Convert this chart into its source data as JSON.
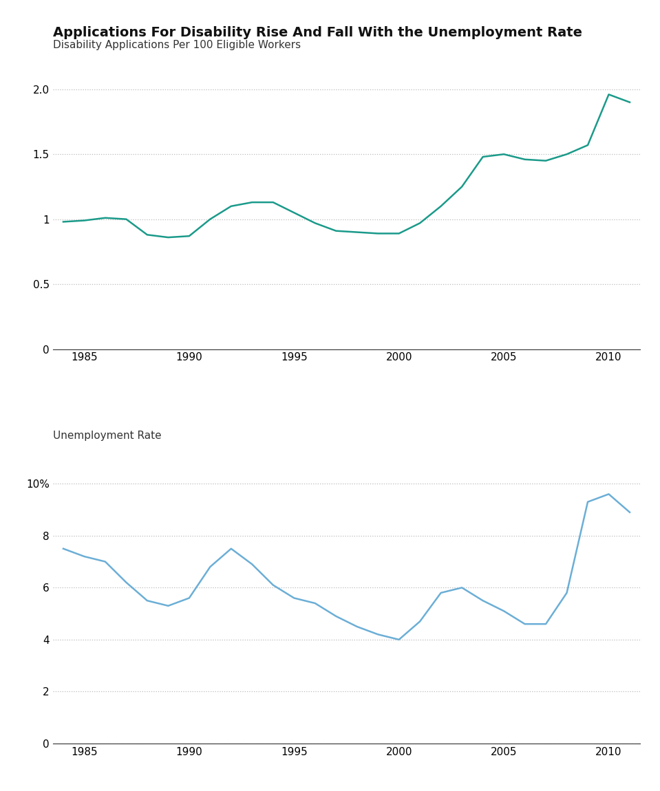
{
  "title": "Applications For Disability Rise And Fall With the Unemployment Rate",
  "subtitle1": "Disability Applications Per 100 Eligible Workers",
  "subtitle2": "Unemployment Rate",
  "disability_years": [
    1984,
    1985,
    1986,
    1987,
    1988,
    1989,
    1990,
    1991,
    1992,
    1993,
    1994,
    1995,
    1996,
    1997,
    1998,
    1999,
    2000,
    2001,
    2002,
    2003,
    2004,
    2005,
    2006,
    2007,
    2008,
    2009,
    2010,
    2011
  ],
  "disability_values": [
    0.98,
    0.99,
    1.01,
    1.0,
    0.88,
    0.86,
    0.87,
    1.0,
    1.1,
    1.13,
    1.13,
    1.05,
    0.97,
    0.91,
    0.9,
    0.89,
    0.89,
    0.97,
    1.1,
    1.25,
    1.48,
    1.5,
    1.46,
    1.45,
    1.5,
    1.57,
    1.96,
    1.9
  ],
  "unemployment_years": [
    1984,
    1985,
    1986,
    1987,
    1988,
    1989,
    1990,
    1991,
    1992,
    1993,
    1994,
    1995,
    1996,
    1997,
    1998,
    1999,
    2000,
    2001,
    2002,
    2003,
    2004,
    2005,
    2006,
    2007,
    2008,
    2009,
    2010,
    2011
  ],
  "unemployment_values": [
    7.5,
    7.2,
    7.0,
    6.2,
    5.5,
    5.3,
    5.6,
    6.8,
    7.5,
    6.9,
    6.1,
    5.6,
    5.4,
    4.9,
    4.5,
    4.2,
    4.0,
    4.7,
    5.8,
    6.0,
    5.5,
    5.1,
    4.6,
    4.6,
    5.8,
    9.3,
    9.6,
    8.9
  ],
  "disability_color": "#1a9a8a",
  "unemployment_color": "#6baed6",
  "line_width": 1.8,
  "background_color": "#ffffff",
  "grid_color": "#bbbbbb",
  "xlim": [
    1983.5,
    2011.5
  ],
  "disability_ylim": [
    0,
    2.2
  ],
  "unemployment_ylim": [
    0,
    11
  ],
  "xticks": [
    1985,
    1990,
    1995,
    2000,
    2005,
    2010
  ]
}
